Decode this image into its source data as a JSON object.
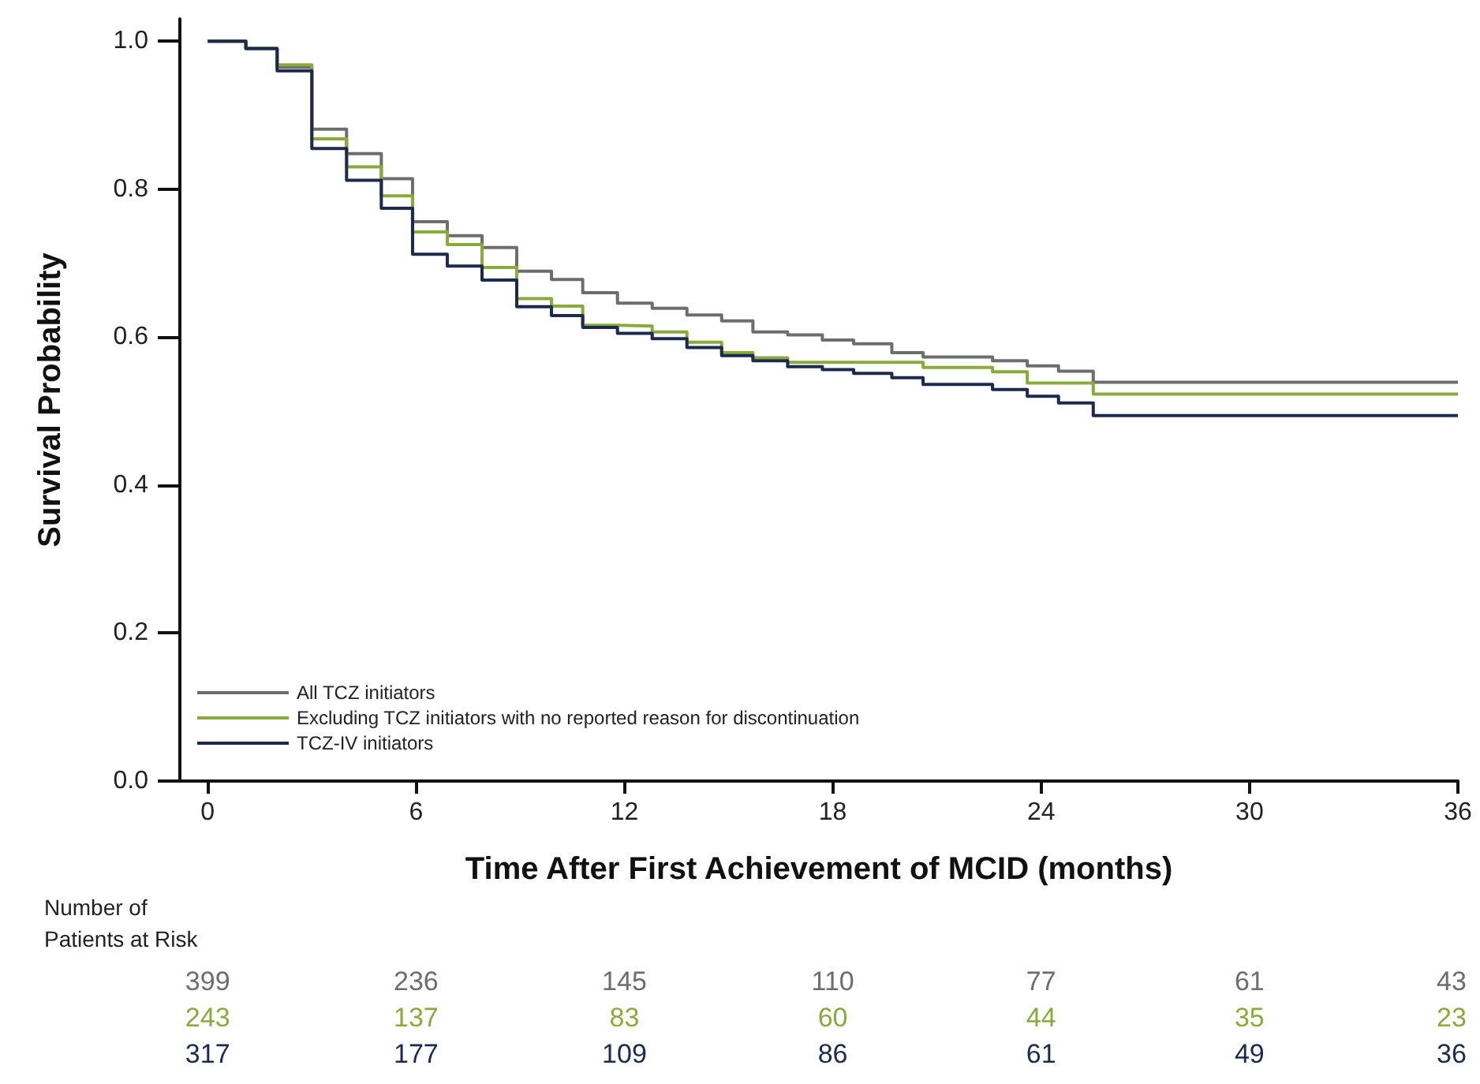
{
  "chart_data": {
    "type": "step",
    "xlabel": "Time After First Achievement of MCID (months)",
    "ylabel": "Survival Probability",
    "x": [
      0,
      1.1,
      2,
      3,
      4,
      5,
      5.9,
      6.9,
      7.9,
      8.9,
      9.9,
      10.8,
      11.8,
      12.8,
      13.8,
      14.8,
      15.7,
      16.7,
      17.7,
      18.6,
      19.7,
      20.6,
      21.6,
      22.6,
      23.6,
      24.5,
      25.5,
      36
    ],
    "series": [
      {
        "name": "All TCZ initiators",
        "color": "#6d6d6d",
        "values": [
          1.0,
          0.99,
          0.965,
          0.881,
          0.848,
          0.814,
          0.756,
          0.737,
          0.721,
          0.689,
          0.678,
          0.66,
          0.646,
          0.639,
          0.63,
          0.622,
          0.607,
          0.603,
          0.596,
          0.591,
          0.579,
          0.573,
          0.573,
          0.568,
          0.561,
          0.554,
          0.539,
          0.539
        ]
      },
      {
        "name": "Excluding TCZ initiators with no reported reason for discontinuation",
        "color": "#8aaa3c",
        "values": [
          1.0,
          0.99,
          0.968,
          0.868,
          0.83,
          0.791,
          0.742,
          0.725,
          0.694,
          0.652,
          0.642,
          0.616,
          0.615,
          0.607,
          0.593,
          0.579,
          0.572,
          0.566,
          0.566,
          0.566,
          0.566,
          0.559,
          0.559,
          0.553,
          0.538,
          0.538,
          0.523,
          0.523
        ]
      },
      {
        "name": "TCZ-IV initiators",
        "color": "#1c2a4f",
        "values": [
          1.0,
          0.99,
          0.96,
          0.855,
          0.812,
          0.774,
          0.712,
          0.696,
          0.677,
          0.641,
          0.629,
          0.613,
          0.605,
          0.598,
          0.586,
          0.575,
          0.568,
          0.56,
          0.556,
          0.551,
          0.545,
          0.536,
          0.536,
          0.529,
          0.52,
          0.511,
          0.494,
          0.494
        ]
      }
    ],
    "xlim": [
      -0.8,
      36
    ],
    "xticks": [
      0,
      6,
      12,
      18,
      24,
      30,
      36
    ],
    "ylim": [
      0,
      1.03
    ],
    "yticks": [
      {
        "value": 0,
        "label": "0.0"
      },
      {
        "value": 0.2,
        "label": "0.2"
      },
      {
        "value": 0.4,
        "label": "0.4"
      },
      {
        "value": 0.6,
        "label": "0.6"
      },
      {
        "value": 0.8,
        "label": "0.8"
      },
      {
        "value": 1.0,
        "label": "1.0"
      }
    ],
    "grid": false,
    "legend": "bottom left",
    "line_style": "solid",
    "marker": "none",
    "annotations": [
      "Number of\nPatients at Risk",
      "399",
      "236",
      "145",
      "110",
      "77",
      "61",
      "43",
      "243",
      "137",
      "83",
      "60",
      "44",
      "35",
      "23",
      "317",
      "177",
      "109",
      "86",
      "61",
      "49",
      "36"
    ]
  }
}
